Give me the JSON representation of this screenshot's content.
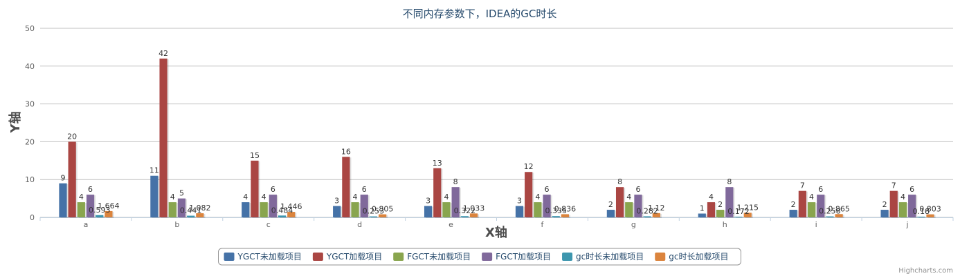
{
  "chart_data": {
    "type": "bar",
    "title": "不同内存参数下，IDEA的GC时长",
    "xlabel": "X轴",
    "ylabel": "Y轴",
    "ylim": [
      0,
      50
    ],
    "yticks": [
      0,
      10,
      20,
      30,
      40,
      50
    ],
    "categories": [
      "a",
      "b",
      "c",
      "d",
      "e",
      "f",
      "g",
      "h",
      "i",
      "j"
    ],
    "series": [
      {
        "name": "YGCT未加载项目",
        "color": "#4572a7",
        "values": [
          9,
          11,
          4,
          3,
          3,
          3,
          2,
          1,
          2,
          2
        ]
      },
      {
        "name": "YGCT加载项目",
        "color": "#aa4643",
        "values": [
          20,
          42,
          15,
          16,
          13,
          12,
          8,
          4,
          7,
          7
        ]
      },
      {
        "name": "FGCT未加载项目",
        "color": "#89a54e",
        "values": [
          4,
          4,
          4,
          4,
          4,
          4,
          4,
          2,
          4,
          4
        ]
      },
      {
        "name": "FGCT加载项目",
        "color": "#80699b",
        "values": [
          6,
          5,
          6,
          6,
          8,
          6,
          6,
          8,
          6,
          6
        ]
      },
      {
        "name": "gc时长未加载项目",
        "color": "#3d96ae",
        "values": [
          0.593,
          0.441,
          0.484,
          0.253,
          0.322,
          0.335,
          0.282,
          0.172,
          0.258,
          0.18
        ]
      },
      {
        "name": "gc时长加载项目",
        "color": "#db843d",
        "values": [
          1.664,
          1.082,
          1.446,
          0.805,
          1.033,
          0.836,
          1.12,
          1.215,
          0.865,
          0.803
        ]
      }
    ],
    "legend_position": "bottom-center",
    "grid": true,
    "credits": "Highcharts.com"
  }
}
